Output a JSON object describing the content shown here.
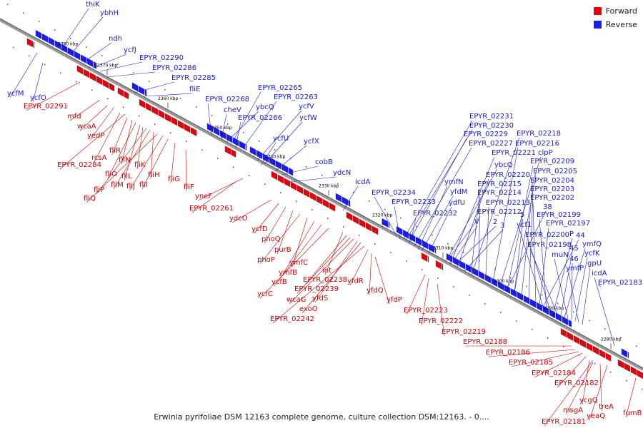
{
  "legend": [
    {
      "label": "Forward",
      "color": "#e8000b"
    },
    {
      "label": "Reverse",
      "color": "#1a1aff"
    }
  ],
  "caption": "Erwinia pyrifoliae DSM 12163 complete genome, culture collection DSM:12163. - 0....",
  "ticks": [
    "2380 kbp",
    "2370 kbp",
    "2360 kbp",
    "2350 kbp",
    "2340 kbp",
    "2330 kbp",
    "2320 kbp",
    "2310 kbp",
    "2300 kbp",
    "2290 kbp",
    "2280 kbp"
  ],
  "reverse_labels": [
    "thiK",
    "ybhH",
    "ndh",
    "ycfJ",
    "EPYR_02290",
    "EPYR_02286",
    "EPYR_02285",
    "fliE",
    "EPYR_02268",
    "cheV",
    "EPYR_02265",
    "EPYR_02263",
    "ybcQ",
    "EPYR_02266",
    "ycfV",
    "ycfW",
    "ycfU",
    "ycfX",
    "cobB",
    "ydcN",
    "icdA",
    "ycfM",
    "ycfO",
    "EPYR_02234",
    "EPYR_02233",
    "EPYR_02232",
    "EPYR_02231",
    "EPYR_02230",
    "EPYR_02229",
    "EPYR_02227",
    "ymfN",
    "yfdM",
    "ydfU",
    "ybcQ",
    "EPYR_02221",
    "EPYR_02220",
    "EPYR_02215",
    "EPYR_02214",
    "EPYR_02213",
    "EPYR_02212",
    "V",
    "2",
    "3",
    "EPYR_02218",
    "EPYR_02216",
    "clpP",
    "EPYR_02209",
    "EPYR_02205",
    "EPYR_02204",
    "EPYR_02203",
    "EPYR_02202",
    "38",
    "5",
    "ycf1",
    "EPYR_02199",
    "EPYR_02197",
    "EPYR_02200",
    "P",
    "44",
    "EPYR_02198",
    "45",
    "ymfQ",
    "muN",
    "46",
    "ycfK",
    "ymfP",
    "gpU",
    "icdA",
    "EPYR_02183"
  ],
  "forward_labels": [
    "EPYR_02291",
    "mfd",
    "wcaA",
    "yedP",
    "rcsA",
    "EPYR_02284",
    "fliR",
    "fliN",
    "fliO",
    "fliL",
    "fliK",
    "fliP",
    "fliM",
    "fliH",
    "fliQ",
    "fliJ",
    "fliI",
    "fliG",
    "fliF",
    "yneF",
    "EPYR_02261",
    "ydcO",
    "ycfD",
    "phoQ",
    "purB",
    "phoP",
    "ymfC",
    "ymfB",
    "ycfB",
    "ycfC",
    "int",
    "EPYR_02238",
    "EPYR_02239",
    "wcaG",
    "yfdS",
    "exoO",
    "EPYR_02242",
    "yfdR",
    "yfdQ",
    "yfdP",
    "EPYR_02223",
    "EPYR_02222",
    "EPYR_02219",
    "EPYR_02188",
    "EPYR_02186",
    "EPYR_02185",
    "EPYR_02184",
    "EPYR_02182",
    "ycgQ",
    "msgA",
    "treA",
    "yeaQ",
    "EPYR_02181",
    "fumB"
  ]
}
